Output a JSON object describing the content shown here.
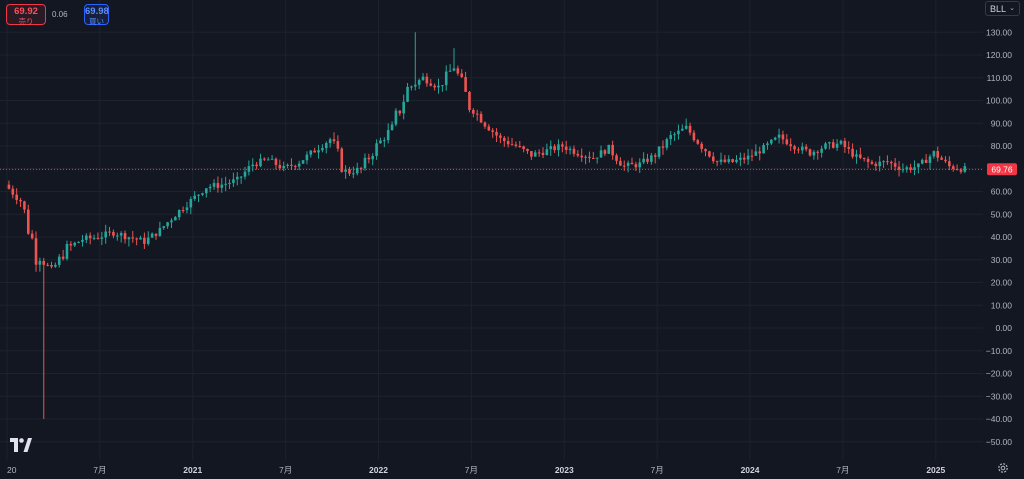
{
  "header": {
    "sell_price": "69.92",
    "sell_label": "売り",
    "spread": "0.06",
    "buy_price": "69.98",
    "buy_label": "買い"
  },
  "symbol": {
    "name": "BLL"
  },
  "current_price": "69.76",
  "colors": {
    "background": "#131722",
    "grid": "#1e222d",
    "up": "#26a69a",
    "down": "#ef5350",
    "axis_text": "#b2b5be",
    "price_line": "#ef5350"
  },
  "icons": [
    "tradingview-logo-icon",
    "settings-gear-icon",
    "chevron-down-icon"
  ],
  "chart_data": {
    "type": "candlestick",
    "title": "",
    "xlabel": "",
    "ylabel": "",
    "ylim": [
      -55,
      135
    ],
    "grid": true,
    "y_ticks": [
      "130.00",
      "120.00",
      "110.00",
      "100.00",
      "90.00",
      "80.00",
      "70.00",
      "60.00",
      "50.00",
      "40.00",
      "30.00",
      "20.00",
      "10.00",
      "0.00",
      "−10.00",
      "−20.00",
      "−30.00",
      "−40.00",
      "−50.00"
    ],
    "x_ticks": [
      {
        "label": "20",
        "date": "2020-01"
      },
      {
        "label": "7月",
        "date": "2020-07"
      },
      {
        "label": "2021",
        "date": "2021-01"
      },
      {
        "label": "7月",
        "date": "2021-07"
      },
      {
        "label": "2022",
        "date": "2022-01"
      },
      {
        "label": "7月",
        "date": "2022-07"
      },
      {
        "label": "2023",
        "date": "2023-01"
      },
      {
        "label": "7月",
        "date": "2023-07"
      },
      {
        "label": "2024",
        "date": "2024-01"
      },
      {
        "label": "7月",
        "date": "2024-07"
      },
      {
        "label": "2025",
        "date": "2025-01"
      }
    ],
    "last_price": 69.76,
    "series": [
      {
        "values": [
          [
            "2020-01",
            63
          ],
          [
            "2020-02",
            56
          ],
          [
            "2020-03",
            33
          ],
          [
            "2020-04",
            25
          ],
          [
            "2020-05",
            35
          ],
          [
            "2020-06",
            39
          ],
          [
            "2020-07",
            40
          ],
          [
            "2020-08",
            42
          ],
          [
            "2020-09",
            40
          ],
          [
            "2020-10",
            38
          ],
          [
            "2020-11",
            43
          ],
          [
            "2020-12",
            50
          ],
          [
            "2021-01",
            56
          ],
          [
            "2021-02",
            62
          ],
          [
            "2021-03",
            63
          ],
          [
            "2021-04",
            65
          ],
          [
            "2021-05",
            72
          ],
          [
            "2021-06",
            74
          ],
          [
            "2021-07",
            70
          ],
          [
            "2021-08",
            73
          ],
          [
            "2021-09",
            78
          ],
          [
            "2021-10",
            83
          ],
          [
            "2021-11",
            68
          ],
          [
            "2021-12",
            70
          ],
          [
            "2022-01",
            80
          ],
          [
            "2022-02",
            88
          ],
          [
            "2022-03",
            105
          ],
          [
            "2022-04",
            110
          ],
          [
            "2022-05",
            106
          ],
          [
            "2022-06",
            115
          ],
          [
            "2022-07",
            98
          ],
          [
            "2022-08",
            90
          ],
          [
            "2022-09",
            83
          ],
          [
            "2022-10",
            80
          ],
          [
            "2022-11",
            76
          ],
          [
            "2022-12",
            78
          ],
          [
            "2023-01",
            80
          ],
          [
            "2023-02",
            77
          ],
          [
            "2023-03",
            75
          ],
          [
            "2023-04",
            79
          ],
          [
            "2023-05",
            71
          ],
          [
            "2023-06",
            72
          ],
          [
            "2023-07",
            76
          ],
          [
            "2023-08",
            84
          ],
          [
            "2023-09",
            88
          ],
          [
            "2023-10",
            80
          ],
          [
            "2023-11",
            73
          ],
          [
            "2023-12",
            73
          ],
          [
            "2024-01",
            75
          ],
          [
            "2024-02",
            79
          ],
          [
            "2024-03",
            84
          ],
          [
            "2024-04",
            80
          ],
          [
            "2024-05",
            77
          ],
          [
            "2024-06",
            80
          ],
          [
            "2024-07",
            81
          ],
          [
            "2024-08",
            75
          ],
          [
            "2024-09",
            72
          ],
          [
            "2024-10",
            73
          ],
          [
            "2024-11",
            70
          ],
          [
            "2024-12",
            71
          ],
          [
            "2025-01",
            77
          ],
          [
            "2025-02",
            71
          ],
          [
            "2025-03",
            69.76
          ]
        ]
      }
    ]
  }
}
